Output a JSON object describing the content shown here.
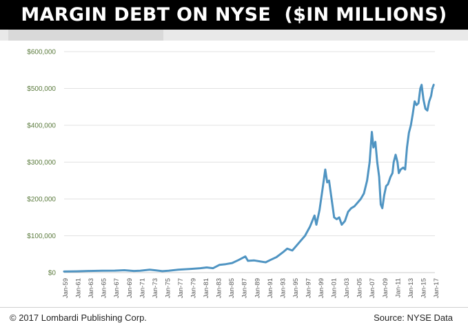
{
  "header": {
    "title": "MARGIN DEBT ON NYSE  ($IN MILLIONS)"
  },
  "footer": {
    "copyright": "© 2017 Lombardi Publishing Corp.",
    "source": "Source: NYSE Data"
  },
  "colors": {
    "line": "#4f94c2",
    "title_bg": "#000000",
    "title_text": "#ffffff",
    "y_label": "#5a7a3c",
    "grid": "#e2e2e2"
  },
  "chart_data": {
    "type": "line",
    "title": "MARGIN DEBT ON NYSE  ($IN MILLIONS)",
    "xlabel": "",
    "ylabel": "",
    "ylim": [
      0,
      600000
    ],
    "grid": true,
    "y_ticks": [
      0,
      100000,
      200000,
      300000,
      400000,
      500000,
      600000
    ],
    "y_tick_labels": [
      "$0",
      "$100,000",
      "$200,000",
      "$300,000",
      "$400,000",
      "$500,000",
      "$600,000"
    ],
    "x_ticks": [
      "Jan-59",
      "Jan-61",
      "Jan-63",
      "Jan-65",
      "Jan-67",
      "Jan-69",
      "Jan-71",
      "Jan-73",
      "Jan-75",
      "Jan-77",
      "Jan-79",
      "Jan-81",
      "Jan-83",
      "Jan-85",
      "Jan-87",
      "Jan-89",
      "Jan-91",
      "Jan-93",
      "Jan-95",
      "Jan-97",
      "Jan-99",
      "Jan-01",
      "Jan-03",
      "Jan-05",
      "Jan-07",
      "Jan-09",
      "Jan-11",
      "Jan-13",
      "Jan-15",
      "Jan-17"
    ],
    "xlim": [
      1959.0,
      2017.5
    ],
    "series": [
      {
        "points": [
          [
            1959.0,
            3000
          ],
          [
            1961.0,
            3500
          ],
          [
            1963.0,
            4500
          ],
          [
            1965.0,
            5000
          ],
          [
            1967.0,
            5500
          ],
          [
            1968.5,
            6500
          ],
          [
            1970.0,
            4500
          ],
          [
            1971.0,
            5000
          ],
          [
            1972.5,
            8000
          ],
          [
            1973.5,
            6000
          ],
          [
            1974.5,
            4000
          ],
          [
            1975.5,
            5000
          ],
          [
            1977.0,
            8000
          ],
          [
            1979.0,
            10000
          ],
          [
            1980.5,
            12000
          ],
          [
            1981.5,
            14000
          ],
          [
            1982.5,
            12000
          ],
          [
            1983.5,
            21000
          ],
          [
            1984.5,
            23000
          ],
          [
            1985.5,
            26000
          ],
          [
            1986.5,
            34000
          ],
          [
            1987.6,
            44000
          ],
          [
            1988.0,
            32000
          ],
          [
            1989.0,
            33000
          ],
          [
            1990.0,
            30000
          ],
          [
            1990.8,
            28000
          ],
          [
            1991.5,
            34000
          ],
          [
            1992.5,
            42000
          ],
          [
            1993.5,
            55000
          ],
          [
            1994.2,
            65000
          ],
          [
            1995.0,
            60000
          ],
          [
            1996.0,
            80000
          ],
          [
            1997.0,
            100000
          ],
          [
            1997.8,
            125000
          ],
          [
            1998.5,
            155000
          ],
          [
            1998.8,
            130000
          ],
          [
            1999.3,
            170000
          ],
          [
            1999.8,
            230000
          ],
          [
            2000.2,
            280000
          ],
          [
            2000.5,
            245000
          ],
          [
            2000.8,
            250000
          ],
          [
            2001.2,
            200000
          ],
          [
            2001.6,
            150000
          ],
          [
            2002.0,
            145000
          ],
          [
            2002.4,
            150000
          ],
          [
            2002.8,
            130000
          ],
          [
            2003.3,
            140000
          ],
          [
            2003.8,
            165000
          ],
          [
            2004.3,
            175000
          ],
          [
            2004.8,
            180000
          ],
          [
            2005.3,
            190000
          ],
          [
            2005.8,
            200000
          ],
          [
            2006.3,
            215000
          ],
          [
            2006.8,
            250000
          ],
          [
            2007.2,
            300000
          ],
          [
            2007.55,
            382000
          ],
          [
            2007.8,
            340000
          ],
          [
            2008.1,
            355000
          ],
          [
            2008.4,
            300000
          ],
          [
            2008.7,
            260000
          ],
          [
            2008.95,
            185000
          ],
          [
            2009.2,
            175000
          ],
          [
            2009.5,
            210000
          ],
          [
            2009.8,
            235000
          ],
          [
            2010.1,
            240000
          ],
          [
            2010.5,
            260000
          ],
          [
            2010.8,
            270000
          ],
          [
            2011.0,
            300000
          ],
          [
            2011.3,
            320000
          ],
          [
            2011.6,
            300000
          ],
          [
            2011.8,
            270000
          ],
          [
            2012.1,
            280000
          ],
          [
            2012.5,
            285000
          ],
          [
            2012.8,
            280000
          ],
          [
            2013.1,
            340000
          ],
          [
            2013.4,
            380000
          ],
          [
            2013.7,
            400000
          ],
          [
            2014.0,
            430000
          ],
          [
            2014.3,
            465000
          ],
          [
            2014.6,
            455000
          ],
          [
            2014.9,
            460000
          ],
          [
            2015.2,
            500000
          ],
          [
            2015.4,
            510000
          ],
          [
            2015.7,
            470000
          ],
          [
            2016.0,
            445000
          ],
          [
            2016.3,
            440000
          ],
          [
            2016.6,
            465000
          ],
          [
            2016.9,
            480000
          ],
          [
            2017.1,
            500000
          ],
          [
            2017.3,
            510000
          ]
        ]
      }
    ]
  }
}
